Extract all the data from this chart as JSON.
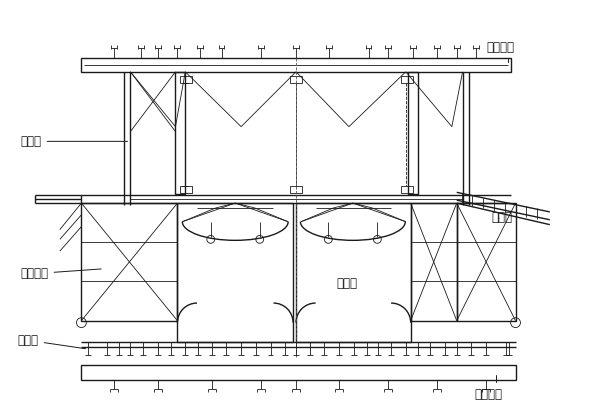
{
  "bg_color": "#ffffff",
  "line_color": "#1a1a1a",
  "label_color": "#1a1a1a",
  "labels": {
    "qianshang": "前上横梁",
    "lingxing": "菱形架",
    "waimoxitong": "外模系统",
    "dizongqiao": "底纵梁",
    "neidaoliang": "内导梁",
    "waidaoliang": "外导梁",
    "qianxia": "前下横梁"
  },
  "figsize": [
    5.93,
    4.16
  ],
  "dpi": 100
}
